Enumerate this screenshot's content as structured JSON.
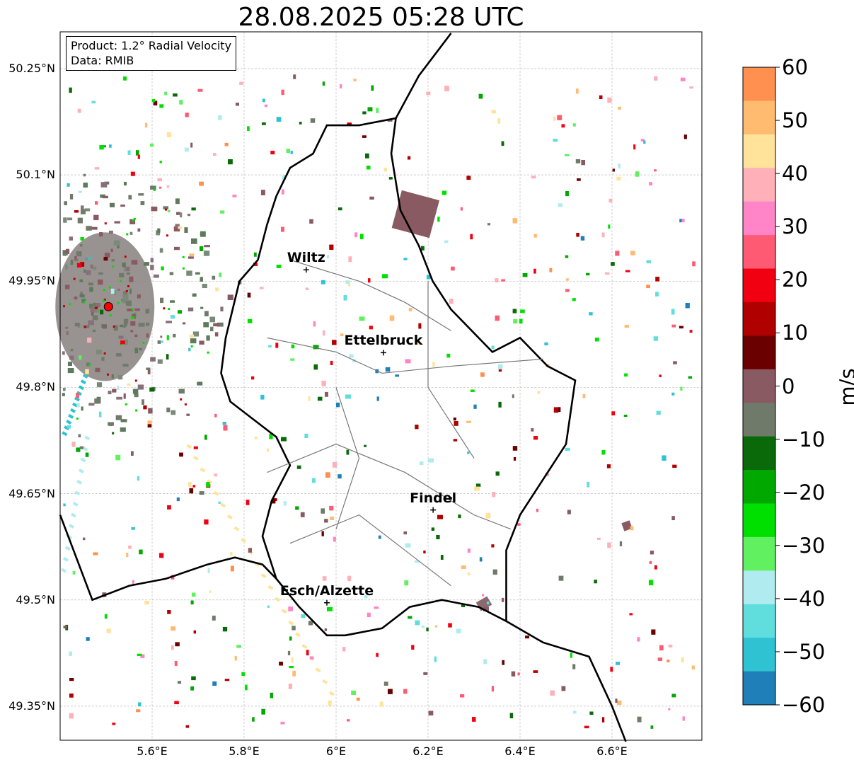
{
  "title": "28.08.2025 05:28 UTC",
  "info": {
    "product": "Product: 1.2° Radial Velocity",
    "source": "Data: RMIB"
  },
  "lat_labels": [
    "50.25°N",
    "50.1°N",
    "49.95°N",
    "49.8°N",
    "49.65°N",
    "49.5°N",
    "49.35°N"
  ],
  "lon_labels": [
    "5.6°E",
    "5.8°E",
    "6°E",
    "6.2°E",
    "6.4°E",
    "6.6°E"
  ],
  "cities": [
    {
      "name": "Wiltz",
      "lon": 5.935,
      "lat": 49.966
    },
    {
      "name": "Ettelbruck",
      "lon": 6.103,
      "lat": 49.849
    },
    {
      "name": "Findel",
      "lon": 6.211,
      "lat": 49.627
    },
    {
      "name": "Esch/Alzette",
      "lon": 5.98,
      "lat": 49.496
    }
  ],
  "radar": {
    "lon": 5.505,
    "lat": 49.914
  },
  "colorbar": {
    "label": "m/s",
    "ticks": [
      "60",
      "50",
      "40",
      "30",
      "20",
      "10",
      "0",
      "−10",
      "−20",
      "−30",
      "−40",
      "−50",
      "−60"
    ],
    "colors": [
      "#ff9050",
      "#ffbb70",
      "#ffe39a",
      "#ffb0b8",
      "#ff85c8",
      "#ff5a74",
      "#f00010",
      "#b00000",
      "#6a0000",
      "#8a5a62",
      "#6f7a6a",
      "#0a6a0a",
      "#00a800",
      "#00e000",
      "#60f060",
      "#b0ecef",
      "#60dede",
      "#2ec2d2",
      "#1f7fb8"
    ]
  },
  "velocity_points": [
    {
      "lon": 6.1,
      "lat": 49.96,
      "v": -25
    },
    {
      "lon": 5.95,
      "lat": 49.86,
      "v": -20
    },
    {
      "lon": 6.2,
      "lat": 49.7,
      "v": -40
    },
    {
      "lon": 6.3,
      "lat": 49.66,
      "v": 50
    },
    {
      "lon": 6.02,
      "lat": 49.79,
      "v": -45
    },
    {
      "lon": 6.22,
      "lat": 49.62,
      "v": 15
    },
    {
      "lon": 6.05,
      "lat": 49.9,
      "v": -30
    },
    {
      "lon": 6.15,
      "lat": 49.84,
      "v": 35
    },
    {
      "lon": 5.88,
      "lat": 49.73,
      "v": -10
    },
    {
      "lon": 6.15,
      "lat": 49.58,
      "v": -38
    },
    {
      "lon": 5.98,
      "lat": 49.49,
      "v": -28
    },
    {
      "lon": 6.32,
      "lat": 49.49,
      "v": 3
    }
  ]
}
